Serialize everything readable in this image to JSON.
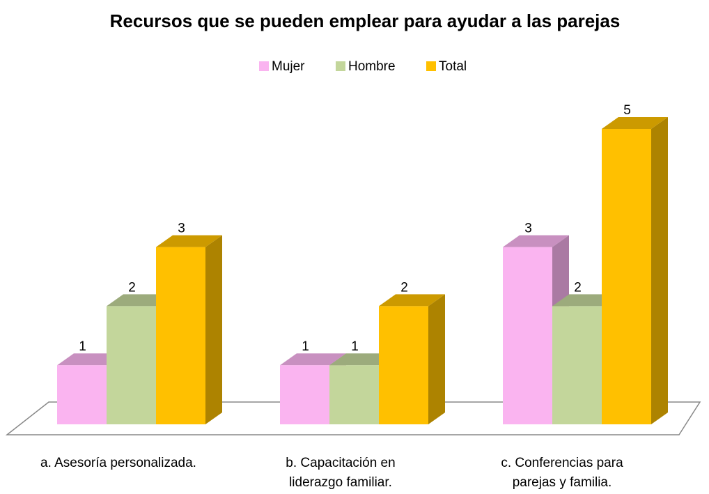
{
  "chart_data": {
    "type": "bar3d",
    "title": "Recursos  que  se pueden emplear para ayudar a las parejas",
    "categories": [
      "a. Asesoría personalizada.",
      "b. Capacitación en liderazgo familiar.",
      "c. Conferencias para parejas y familia."
    ],
    "series": [
      {
        "name": "Mujer",
        "color": "#fab4f0",
        "values": [
          1,
          1,
          3
        ]
      },
      {
        "name": "Hombre",
        "color": "#c3d69b",
        "values": [
          2,
          1,
          2
        ]
      },
      {
        "name": "Total",
        "color": "#ffc000",
        "values": [
          3,
          2,
          5
        ]
      }
    ],
    "legend": "top"
  }
}
